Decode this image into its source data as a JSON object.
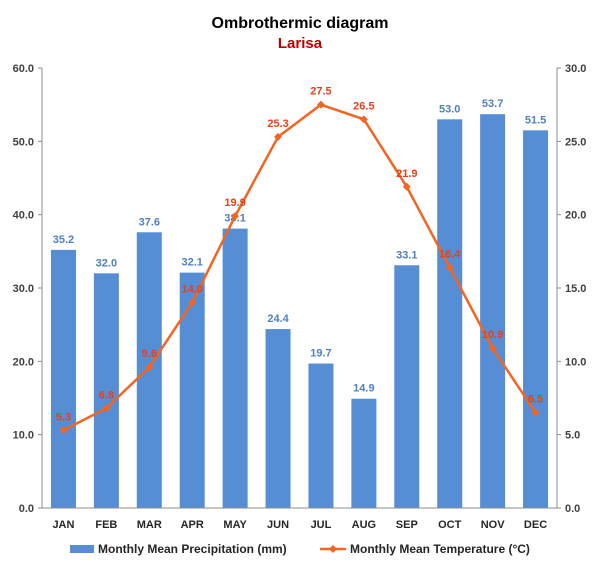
{
  "colors": {
    "precipitation": "#558ED5",
    "temperature": "#F26522",
    "bar_label": "#4F81BD",
    "line_label": "#E8401C",
    "subtitle": "#C00000",
    "axis": "#8C8C8C"
  },
  "chart_data": {
    "type": "bar",
    "title": "Ombrothermic diagram",
    "subtitle": "Larisa",
    "categories": [
      "JAN",
      "FEB",
      "MAR",
      "APR",
      "MAY",
      "JUN",
      "JUL",
      "AUG",
      "SEP",
      "OCT",
      "NOV",
      "DEC"
    ],
    "series": [
      {
        "name": "Monthly Mean Precipitation (mm)",
        "type": "bar",
        "axis": "left",
        "values": [
          35.2,
          32.0,
          37.6,
          32.1,
          38.1,
          24.4,
          19.7,
          14.9,
          33.1,
          53.0,
          53.7,
          51.5
        ],
        "labels": [
          "35.2",
          "32.0",
          "37.6",
          "32.1",
          "38.1",
          "24.4",
          "19.7",
          "14.9",
          "33.1",
          "53.0",
          "53.7",
          "51.5"
        ]
      },
      {
        "name": "Monthly Mean Temperature (°C)",
        "type": "line",
        "axis": "right",
        "values": [
          5.3,
          6.8,
          9.6,
          14.0,
          19.9,
          25.3,
          27.5,
          26.5,
          21.9,
          16.4,
          10.9,
          6.5
        ],
        "labels": [
          "5.3",
          "6.8",
          "9.6",
          "14.0",
          "19.9",
          "25.3",
          "27.5",
          "26.5",
          "21.9",
          "16.4",
          "10.9",
          "6.5"
        ]
      }
    ],
    "left_axis": {
      "ylim": [
        0,
        60
      ],
      "ticks": [
        0,
        10,
        20,
        30,
        40,
        50,
        60
      ],
      "tick_labels": [
        "0.0",
        "10.0",
        "20.0",
        "30.0",
        "40.0",
        "50.0",
        "60.0"
      ]
    },
    "right_axis": {
      "ylim": [
        0,
        30
      ],
      "ticks": [
        0,
        5,
        10,
        15,
        20,
        25,
        30
      ],
      "tick_labels": [
        "0.0",
        "5.0",
        "10.0",
        "15.0",
        "20.0",
        "25.0",
        "30.0"
      ]
    },
    "grid": false,
    "legend_position": "bottom"
  }
}
